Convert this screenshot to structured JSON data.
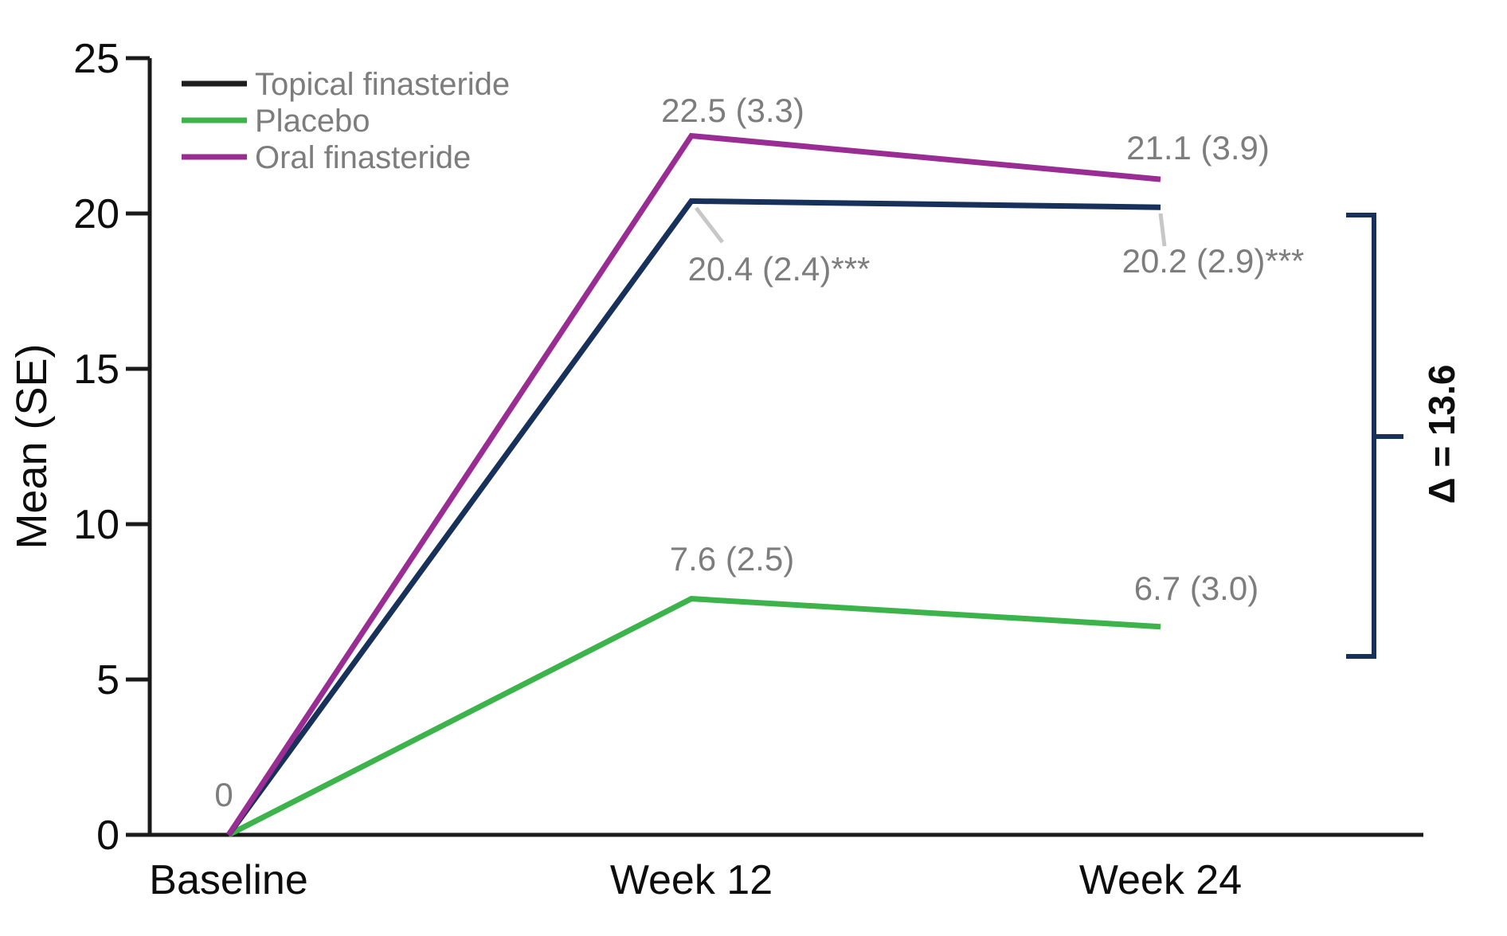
{
  "colors": {
    "axis": "#1a1a1a",
    "tick_label": "#0d0d0d",
    "data_label_gray": "#7d7d7d",
    "legend_text_gray": "#7d7d7d",
    "leader_line_gray": "#c7c7c7",
    "topical_line": "#17315a",
    "topical_legend_swatch": "#1e1e1e",
    "placebo_line": "#3cb44b",
    "oral_line": "#992d94",
    "bracket": "#17315a",
    "annotation_text": "#0d0d0d"
  },
  "chart_data": {
    "type": "line",
    "title": "",
    "xlabel": "",
    "ylabel": "Mean (SE)",
    "ylim": [
      0,
      25
    ],
    "yticks": [
      0,
      5,
      10,
      15,
      20,
      25
    ],
    "categories": [
      "Baseline",
      "Week 12",
      "Week 24"
    ],
    "grid": "off",
    "legend_position": "top-left",
    "series": [
      {
        "name": "Topical finasteride",
        "values": [
          0,
          20.4,
          20.2
        ],
        "point_labels": [
          "",
          "20.4 (2.4)***",
          "20.2 (2.9)***"
        ]
      },
      {
        "name": "Placebo",
        "values": [
          0,
          7.6,
          6.7
        ],
        "point_labels": [
          "",
          "7.6 (2.5)",
          "6.7 (3.0)"
        ]
      },
      {
        "name": "Oral finasteride",
        "values": [
          0,
          22.5,
          21.1
        ],
        "point_labels": [
          "",
          "22.5 (3.3)",
          "21.1 (3.9)"
        ]
      }
    ],
    "baseline_shared_label": "0",
    "annotation": {
      "text": "Δ = 13.6",
      "bracket_top_value": 20.0,
      "bracket_bottom_value": 5.7
    }
  }
}
